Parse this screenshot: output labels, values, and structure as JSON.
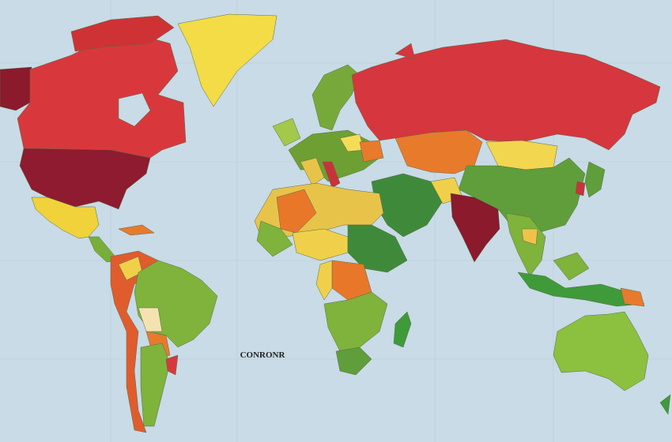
{
  "map": {
    "label": "CONRONR"
  }
}
